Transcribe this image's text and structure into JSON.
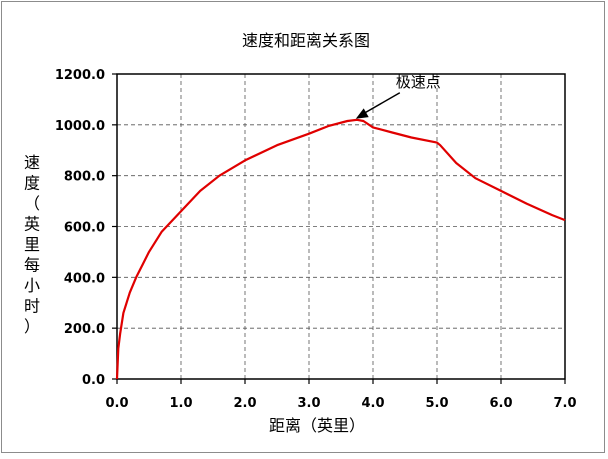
{
  "chart_data": {
    "type": "line",
    "title": "速度和距离关系图",
    "xlabel": "距离（英里）",
    "ylabel": "速度（英里每小时）",
    "xlim": [
      0,
      7
    ],
    "ylim": [
      0,
      1200
    ],
    "x_ticks": [
      "0.0",
      "1.0",
      "2.0",
      "3.0",
      "4.0",
      "5.0",
      "6.0",
      "7.0"
    ],
    "y_ticks": [
      "0.0",
      "200.0",
      "400.0",
      "600.0",
      "800.0",
      "1000.0",
      "1200.0"
    ],
    "grid": true,
    "legend": "none",
    "series_color": "#e00000",
    "annotation": {
      "text": "极速点",
      "x": 3.7,
      "y": 1020
    },
    "series": [
      {
        "x": [
          0,
          0.02,
          0.05,
          0.1,
          0.2,
          0.3,
          0.4,
          0.5,
          0.7,
          1.0,
          1.3,
          1.6,
          2.0,
          2.5,
          3.0,
          3.3,
          3.6,
          3.75,
          3.85,
          4.0,
          4.3,
          4.6,
          5.0,
          5.05,
          5.3,
          5.6,
          6.0,
          6.4,
          6.8,
          7.0
        ],
        "y": [
          0,
          120,
          180,
          260,
          340,
          400,
          450,
          500,
          580,
          660,
          740,
          800,
          860,
          920,
          965,
          995,
          1015,
          1020,
          1015,
          990,
          970,
          950,
          930,
          920,
          850,
          790,
          740,
          690,
          645,
          625
        ]
      }
    ]
  }
}
